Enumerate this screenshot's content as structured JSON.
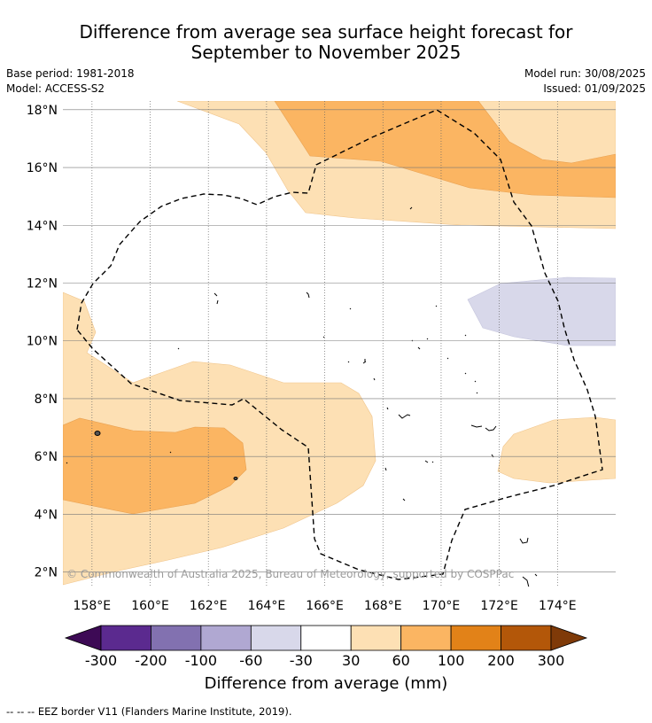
{
  "title_line1": "Difference from average sea surface height forecast for",
  "title_line2": "September to November 2025",
  "base_period": "Base period: 1981-2018",
  "model": "Model: ACCESS-S2",
  "model_run": "Model run: 30/08/2025",
  "issued": "Issued: 01/09/2025",
  "copyright": "© Commonwealth of Australia 2025, Bureau of Meteorology, supported by COSPPac",
  "map": {
    "lon_range": [
      157,
      176
    ],
    "lat_range": [
      1.5,
      18.3
    ],
    "lon_ticks": [
      158,
      160,
      162,
      164,
      166,
      168,
      170,
      172,
      174
    ],
    "lon_tick_labels": [
      "158°E",
      "160°E",
      "162°E",
      "164°E",
      "166°E",
      "168°E",
      "170°E",
      "172°E",
      "174°E"
    ],
    "lat_ticks": [
      2,
      4,
      6,
      8,
      10,
      12,
      14,
      16,
      18
    ],
    "lat_tick_labels": [
      "2°N",
      "4°N",
      "6°N",
      "8°N",
      "10°N",
      "12°N",
      "14°N",
      "16°N",
      "18°N"
    ],
    "grid": true
  },
  "colorbar": {
    "ticks": [
      "-300",
      "-200",
      "-100",
      "-60",
      "-30",
      "30",
      "60",
      "100",
      "200",
      "300"
    ],
    "colors": [
      "#3d0a55",
      "#5b2a8f",
      "#8271b0",
      "#b0a8d2",
      "#d8d8ea",
      "#ffffff",
      "#fde0b4",
      "#fbb562",
      "#e28218",
      "#b35709",
      "#7f3a08"
    ],
    "label": "Difference from average (mm)"
  },
  "colors": {
    "band_30_60": "#fde0b4",
    "band_60_100": "#fbb562",
    "band_neg30_neg60": "#d8d8ea",
    "eez": "#000000"
  },
  "legend_note": "-- -- -- EEZ border V11 (Flanders Marine Institute, 2019)."
}
